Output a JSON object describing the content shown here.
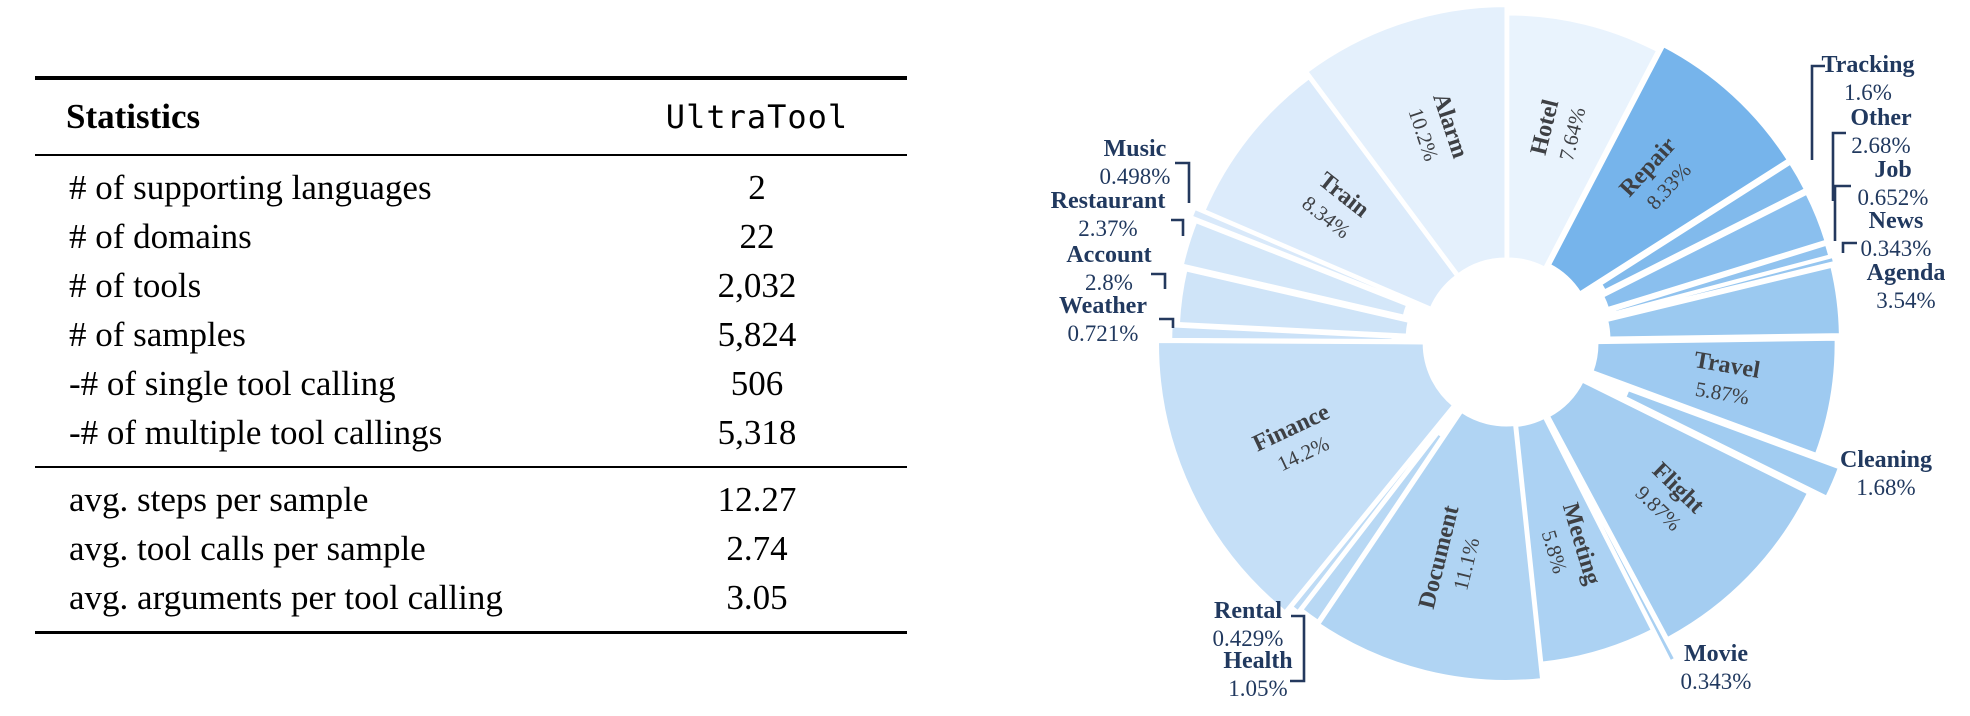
{
  "table": {
    "header": {
      "statistics": "Statistics",
      "dataset": "UltraTool"
    },
    "rows_counts": [
      {
        "label": "# of supporting languages",
        "value": "2"
      },
      {
        "label": "# of domains",
        "value": "22"
      },
      {
        "label": "# of tools",
        "value": "2,032"
      },
      {
        "label": "# of samples",
        "value": "5,824"
      },
      {
        "label": "-# of single tool calling",
        "value": "506"
      },
      {
        "label": "-# of multiple tool callings",
        "value": "5,318"
      }
    ],
    "rows_averages": [
      {
        "label": "avg. steps per sample",
        "value": "12.27"
      },
      {
        "label": "avg. tool calls per sample",
        "value": "2.74"
      },
      {
        "label": "avg. arguments per tool calling",
        "value": "3.05"
      }
    ]
  },
  "chart_data": {
    "type": "pie",
    "subtype": "exploded donut",
    "title": "",
    "units": "%",
    "order": "clockwise from 12 o'clock",
    "hole_ratio": 0.24,
    "legend_position": "none (direct labels)",
    "inside_label_color": "#3e4044",
    "outside_label_color": "#21395f",
    "segments": [
      {
        "label": "Hotel",
        "value": 7.64,
        "display": "7.64%",
        "color": "#e9f3fd",
        "label_placement": "inside"
      },
      {
        "label": "Repair",
        "value": 8.33,
        "display": "8.33%",
        "color": "#76b4eb",
        "label_placement": "inside"
      },
      {
        "label": "Tracking",
        "value": 1.6,
        "display": "1.6%",
        "color": "#81baec",
        "label_placement": "outside"
      },
      {
        "label": "Other",
        "value": 2.68,
        "display": "2.68%",
        "color": "#8abfee",
        "label_placement": "outside"
      },
      {
        "label": "Job",
        "value": 0.652,
        "display": "0.652%",
        "color": "#91c3ef",
        "label_placement": "outside"
      },
      {
        "label": "News",
        "value": 0.343,
        "display": "0.343%",
        "color": "#96c6f0",
        "label_placement": "outside"
      },
      {
        "label": "Agenda",
        "value": 3.54,
        "display": "3.54%",
        "color": "#9bc9f0",
        "label_placement": "outside"
      },
      {
        "label": "Travel",
        "value": 5.87,
        "display": "5.87%",
        "color": "#9ecaf1",
        "label_placement": "inside"
      },
      {
        "label": "Cleaning",
        "value": 1.68,
        "display": "1.68%",
        "color": "#a1ccf1",
        "label_placement": "outside"
      },
      {
        "label": "Flight",
        "value": 9.87,
        "display": "9.87%",
        "color": "#a4cdf1",
        "label_placement": "inside"
      },
      {
        "label": "Movie",
        "value": 0.343,
        "display": "0.343%",
        "color": "#a9d0f2",
        "label_placement": "outside"
      },
      {
        "label": "Meeting",
        "value": 5.8,
        "display": "5.8%",
        "color": "#acd2f3",
        "label_placement": "inside"
      },
      {
        "label": "Document",
        "value": 11.1,
        "display": "11.1%",
        "color": "#b0d4f3",
        "label_placement": "inside"
      },
      {
        "label": "Health",
        "value": 1.05,
        "display": "1.05%",
        "color": "#b8d8f4",
        "label_placement": "outside"
      },
      {
        "label": "Rental",
        "value": 0.429,
        "display": "0.429%",
        "color": "#bedbf5",
        "label_placement": "outside"
      },
      {
        "label": "Finance",
        "value": 14.2,
        "display": "14.2%",
        "color": "#c5dff7",
        "label_placement": "inside"
      },
      {
        "label": "Weather",
        "value": 0.721,
        "display": "0.721%",
        "color": "#cbe2f8",
        "label_placement": "outside"
      },
      {
        "label": "Account",
        "value": 2.8,
        "display": "2.8%",
        "color": "#cfe4f8",
        "label_placement": "outside"
      },
      {
        "label": "Restaurant",
        "value": 2.37,
        "display": "2.37%",
        "color": "#d4e7f9",
        "label_placement": "outside"
      },
      {
        "label": "Music",
        "value": 0.498,
        "display": "0.498%",
        "color": "#d9e9fa",
        "label_placement": "outside"
      },
      {
        "label": "Train",
        "value": 8.34,
        "display": "8.34%",
        "color": "#dcebfb",
        "label_placement": "inside"
      },
      {
        "label": "Alarm",
        "value": 10.2,
        "display": "10.2%",
        "color": "#e4f0fc",
        "label_placement": "inside"
      }
    ]
  }
}
